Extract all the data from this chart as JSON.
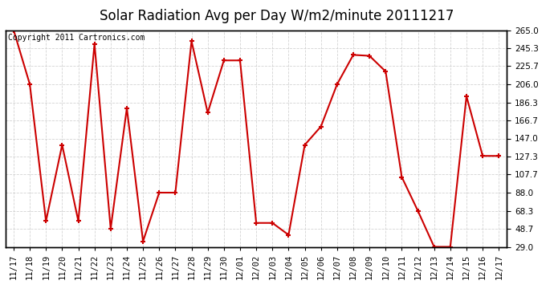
{
  "title": "Solar Radiation Avg per Day W/m2/minute 20111217",
  "copyright": "Copyright 2011 Cartronics.com",
  "labels": [
    "11/17",
    "11/18",
    "11/19",
    "11/20",
    "11/21",
    "11/22",
    "11/23",
    "11/24",
    "11/25",
    "11/26",
    "11/27",
    "11/28",
    "11/29",
    "11/30",
    "12/01",
    "12/02",
    "12/03",
    "12/04",
    "12/05",
    "12/06",
    "12/07",
    "12/08",
    "12/09",
    "12/10",
    "12/11",
    "12/12",
    "12/13",
    "12/14",
    "12/15",
    "12/16",
    "12/17"
  ],
  "values": [
    265.0,
    206.0,
    57.0,
    140.0,
    57.0,
    250.0,
    48.7,
    180.0,
    35.0,
    88.0,
    88.0,
    253.0,
    175.0,
    232.0,
    232.0,
    55.0,
    55.0,
    42.0,
    140.0,
    160.0,
    206.0,
    238.0,
    237.0,
    220.0,
    105.0,
    68.0,
    29.0,
    29.0,
    193.0,
    128.0,
    128.0
  ],
  "line_color": "#cc0000",
  "bg_color": "#ffffff",
  "plot_bg_color": "#ffffff",
  "grid_color": "#c8c8c8",
  "yticks": [
    29.0,
    48.7,
    68.3,
    88.0,
    107.7,
    127.3,
    147.0,
    166.7,
    186.3,
    206.0,
    225.7,
    245.3,
    265.0
  ],
  "ylim": [
    29.0,
    265.0
  ],
  "title_fontsize": 12,
  "axis_fontsize": 7.5,
  "copyright_fontsize": 7
}
